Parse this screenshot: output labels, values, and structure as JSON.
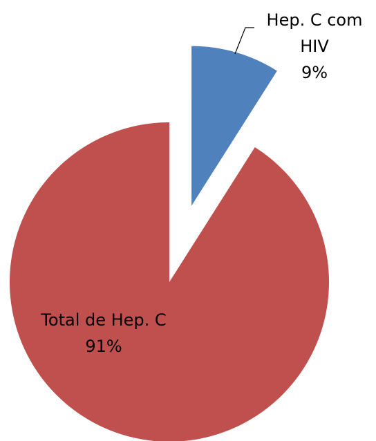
{
  "chart_data": {
    "type": "pie",
    "categories": [
      "Hep. C com HIV",
      "Total de Hep. C"
    ],
    "values": [
      9,
      91
    ],
    "value_labels": [
      "9%",
      "91%"
    ],
    "colors": [
      "#4f81bd",
      "#c0504d"
    ]
  }
}
